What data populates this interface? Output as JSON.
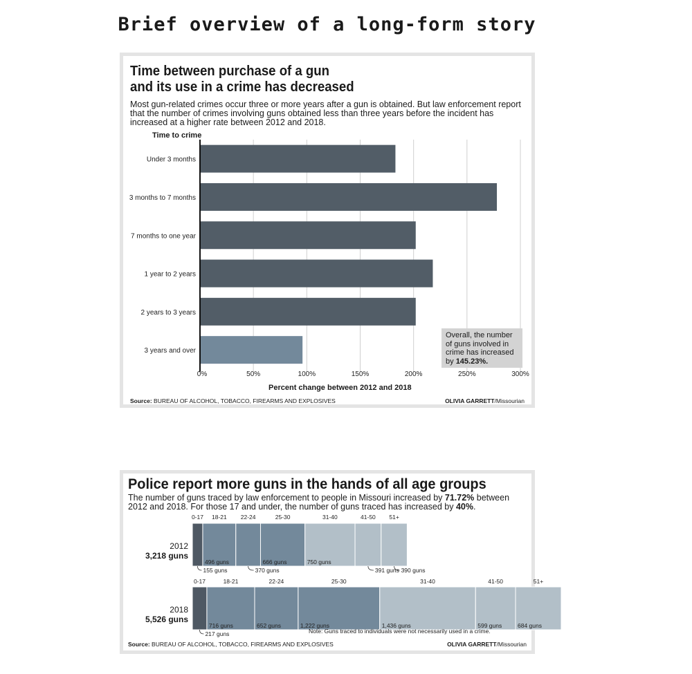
{
  "page_title": "Brief overview of a long-form story",
  "chart_data": [
    {
      "type": "bar",
      "orientation": "horizontal",
      "title": "Time between purchase of a gun and its use in a crime has decreased",
      "title_line1": "Time between purchase of a gun",
      "title_line2": "and its use in a crime has decreased",
      "subtitle": "Most gun-related crimes occur three or more years after a gun is obtained. But law enforcement report that the number of crimes involving guns obtained less than three years before the incident has increased at a higher rate between 2012 and 2018.",
      "ylabel": "Time to crime",
      "xlabel": "Percent change between 2012 and 2018",
      "categories": [
        "Under 3 months",
        "3 months to 7 months",
        "7 months to one year",
        "1 year to 2 years",
        "2 years to 3 years",
        "3 years and over"
      ],
      "values": [
        183,
        278,
        202,
        218,
        202,
        96
      ],
      "xlim": [
        0,
        300
      ],
      "xticks": [
        "0%",
        "50%",
        "100%",
        "150%",
        "200%",
        "250%",
        "300%"
      ],
      "grid": true,
      "colors": {
        "bar": "#525d67",
        "highlight": "#73899b"
      },
      "annotation_text": "Overall, the number of guns involved in crime has increased by",
      "annotation_value": "145.23%.",
      "source_label": "Source:",
      "source": "BUREAU OF ALCOHOL, TOBACCO, FIREARMS AND EXPLOSIVES",
      "credit_name": "OLIVIA GARRETT",
      "credit_org": "/Missourian"
    },
    {
      "type": "bar",
      "orientation": "stacked-horizontal",
      "title": "Police report more guns in the hands of all age groups",
      "subtitle_pre": "The number of guns traced by law enforcement to people in Missouri increased by ",
      "subtitle_pct1": "71.72%",
      "subtitle_mid": " between 2012 and 2018. For those 17 and under, the number of guns traced has increased by ",
      "subtitle_pct2": "40%",
      "subtitle_end": ".",
      "categories": [
        "0-17",
        "18-21",
        "22-24",
        "25-30",
        "31-40",
        "41-50",
        "51+"
      ],
      "series": [
        {
          "year": "2012",
          "total": "3,218 guns",
          "values": [
            155,
            496,
            370,
            666,
            750,
            391,
            390
          ],
          "labels": [
            "155 guns",
            "496 guns",
            "370 guns",
            "666 guns",
            "750 guns",
            "391 guns",
            "390 guns"
          ]
        },
        {
          "year": "2018",
          "total": "5,526 guns",
          "values": [
            217,
            716,
            652,
            1222,
            1436,
            599,
            684
          ],
          "labels": [
            "217 guns",
            "716 guns",
            "652 guns",
            "1,222 guns",
            "1,436 guns",
            "599 guns",
            "684 guns"
          ]
        }
      ],
      "colors": [
        "#4e5863",
        "#73899b",
        "#73899b",
        "#73899b",
        "#b2bfc8",
        "#b2bfc8",
        "#b2bfc8"
      ],
      "note": "Note: Guns traced to individuals were not necessarily used in a crime.",
      "source_label": "Source:",
      "source": "BUREAU OF ALCOHOL, TOBACCO, FIREARMS AND EXPLOSIVES",
      "credit_name": "OLIVIA GARRETT",
      "credit_org": "/Missourian"
    }
  ]
}
